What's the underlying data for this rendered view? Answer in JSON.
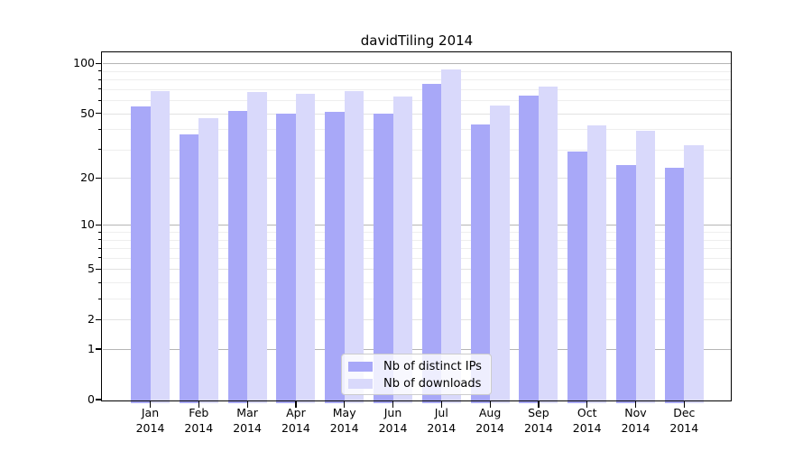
{
  "chart_data": {
    "type": "bar",
    "title": "davidTiling 2014",
    "scale": "log1p",
    "categories": [
      "Jan",
      "Feb",
      "Mar",
      "Apr",
      "May",
      "Jun",
      "Jul",
      "Aug",
      "Sep",
      "Oct",
      "Nov",
      "Dec"
    ],
    "year_label": "2014",
    "series": [
      {
        "name": "Nb of distinct IPs",
        "color": "#a8a8f8",
        "values": [
          55,
          37,
          52,
          50,
          51,
          50,
          75,
          43,
          64,
          29,
          24,
          23
        ]
      },
      {
        "name": "Nb of downloads",
        "color": "#d9d9fb",
        "values": [
          68,
          47,
          67,
          66,
          68,
          63,
          92,
          56,
          73,
          42,
          39,
          32
        ]
      }
    ],
    "yticks_labeled": [
      0,
      1,
      2,
      5,
      10,
      20,
      50,
      100
    ],
    "yticks_decade": [
      1,
      10,
      100
    ],
    "yticks_minor": [
      3,
      4,
      6,
      7,
      8,
      9,
      30,
      40,
      60,
      70,
      80,
      90
    ],
    "ylim": [
      0,
      117
    ],
    "xlabel": "",
    "ylabel": "",
    "grid": true,
    "legend_position": "lower center"
  },
  "colors": {
    "bar_distinct_ips": "#a8a8f8",
    "bar_downloads": "#d9d9fb",
    "grid_major": "#b5b5b5",
    "grid_mid": "#e2e2e2",
    "grid_minor": "#eeeeee",
    "axis": "#000000",
    "text": "#000000",
    "legend_border": "#cccccc",
    "background": "#ffffff"
  }
}
